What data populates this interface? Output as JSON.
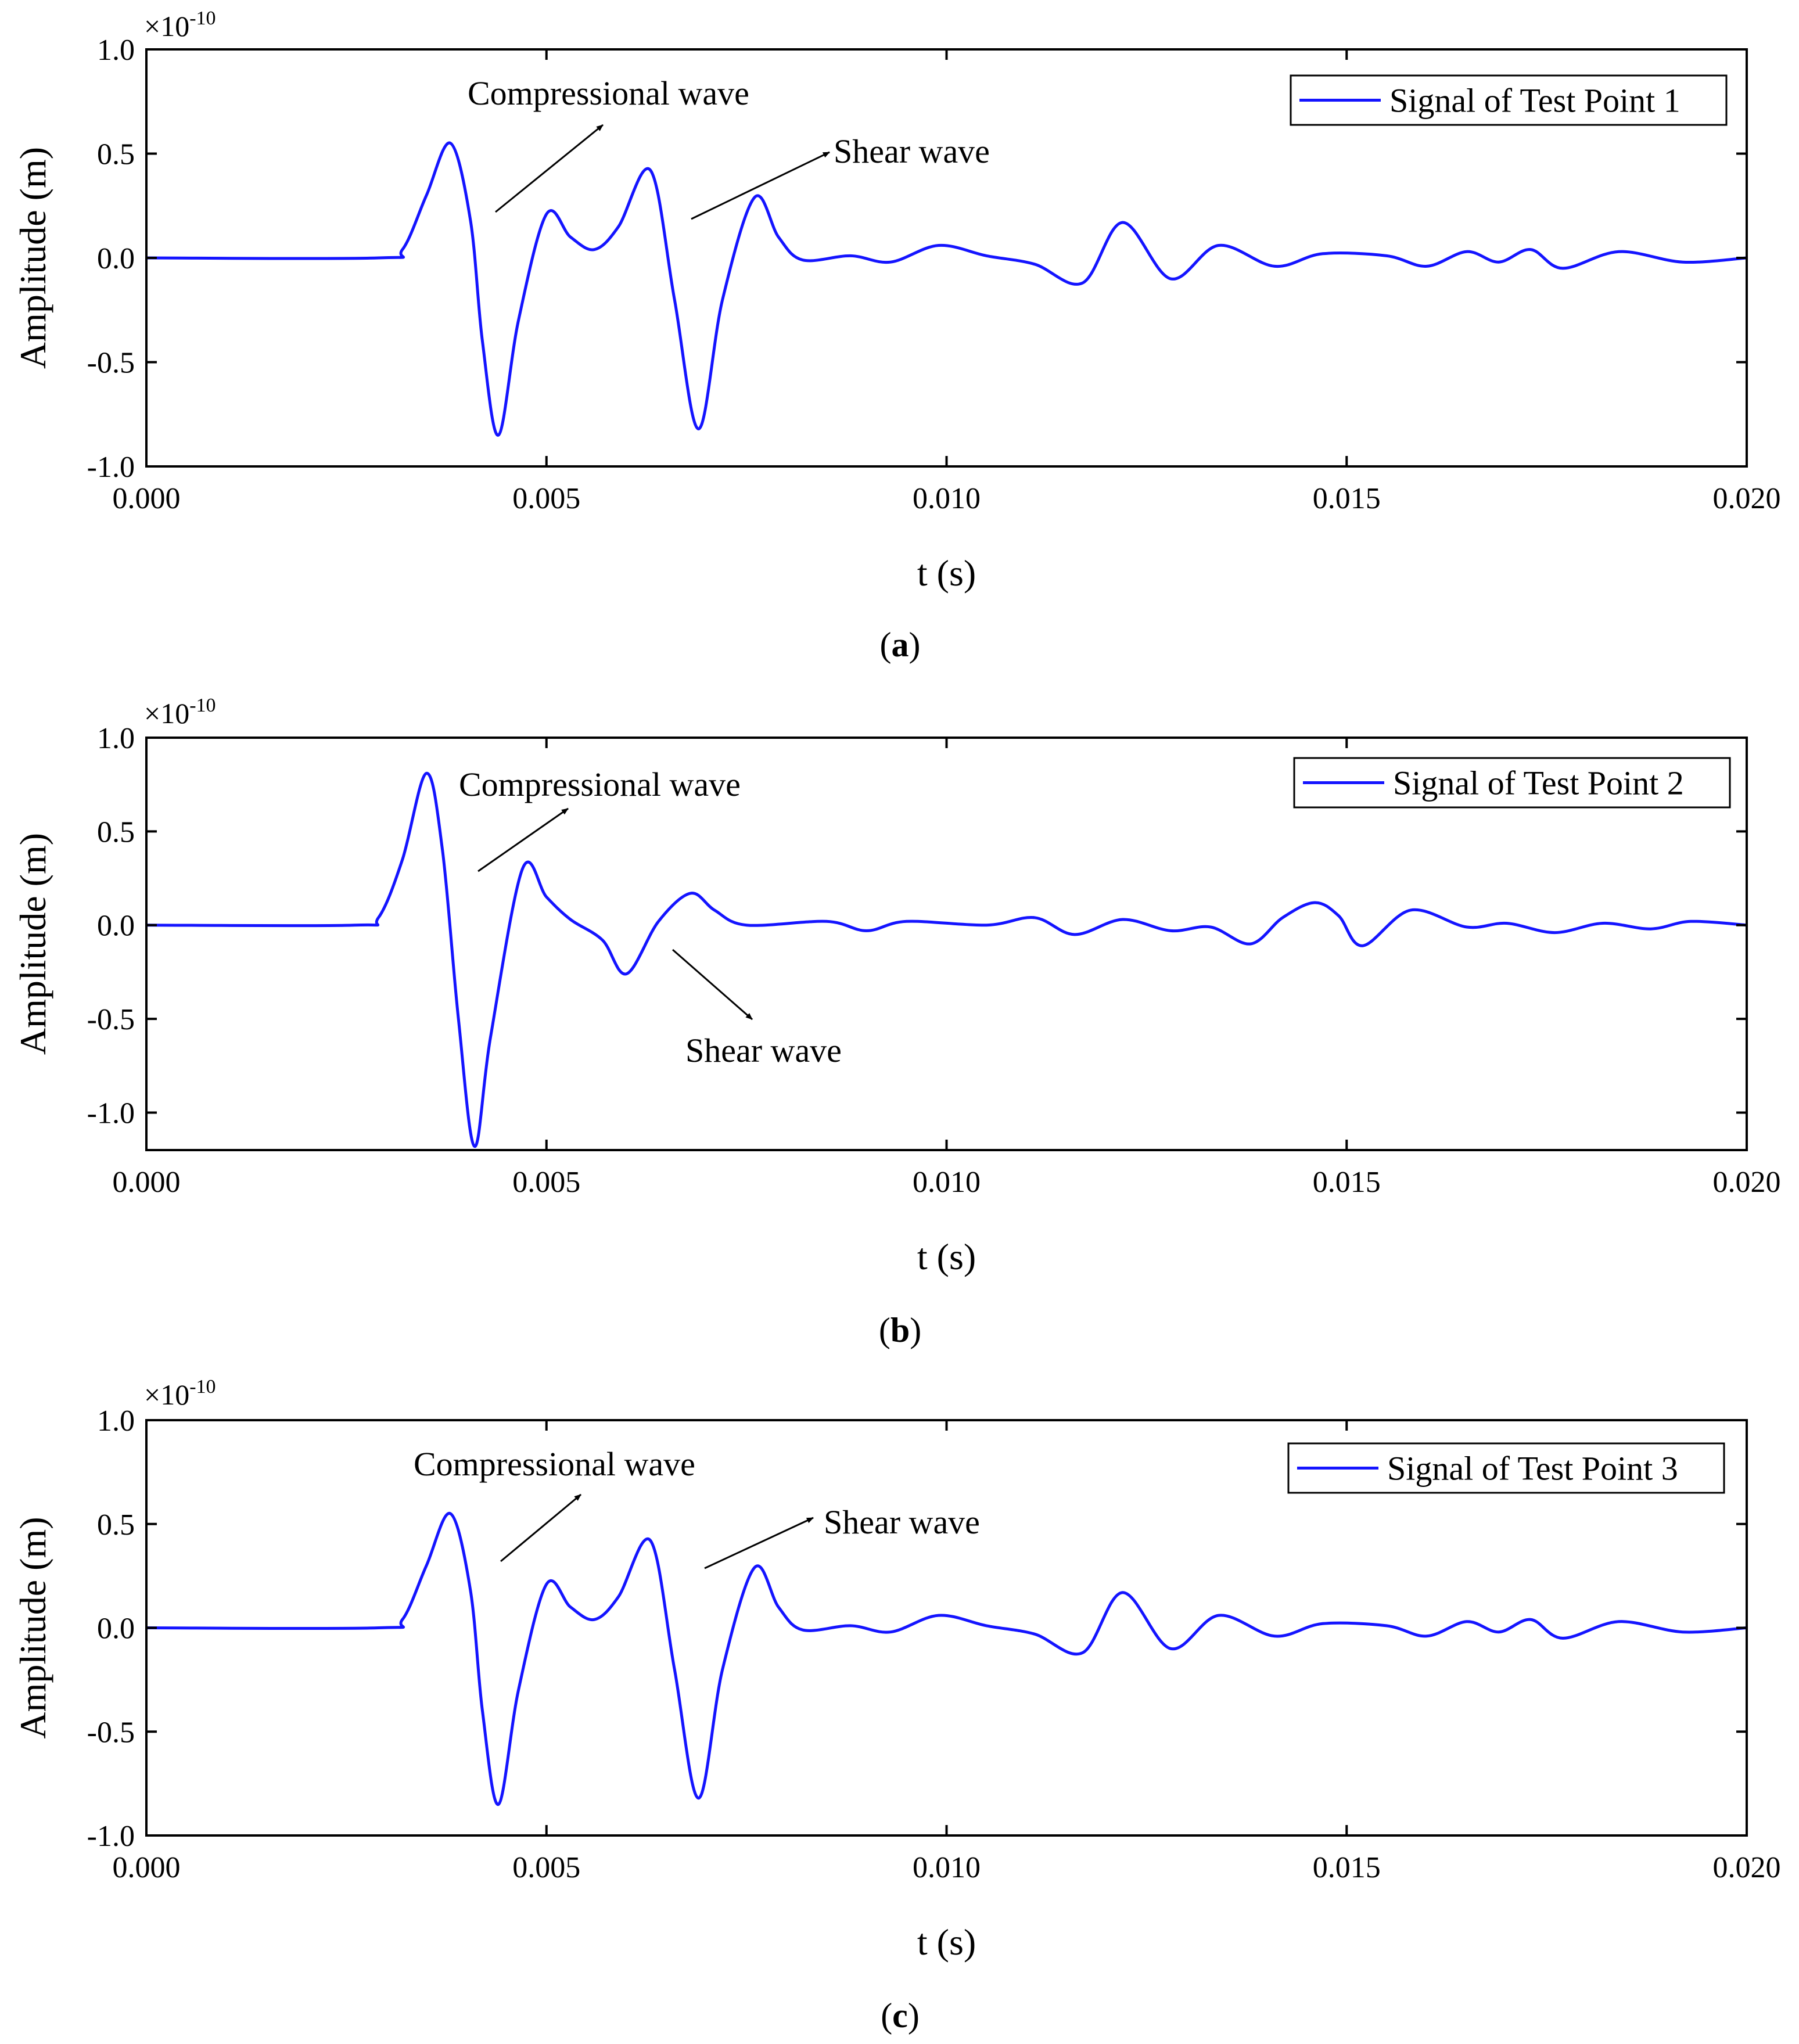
{
  "colors": {
    "series": "#1414ff",
    "axis": "#000000",
    "background": "#ffffff"
  },
  "chart_data": [
    {
      "type": "line",
      "caption_letter": "a",
      "xlabel": "t (s)",
      "ylabel": "Amplitude (m)",
      "multiplier": {
        "base": "×10",
        "exponent": "-10"
      },
      "xlim": [
        0,
        0.02
      ],
      "ylim": [
        -1.0,
        1.0
      ],
      "xticks": [
        "0.000",
        "0.005",
        "0.010",
        "0.015",
        "0.020"
      ],
      "yticks": [
        "1.0",
        "0.5",
        "0.0",
        "-0.5",
        "-1.0"
      ],
      "legend": {
        "position": "top-right",
        "entries": [
          "Signal of Test Point 1"
        ]
      },
      "annotations": [
        {
          "text": "Compressional wave",
          "direction": "up"
        },
        {
          "text": "Shear wave",
          "direction": "up"
        }
      ],
      "series": [
        {
          "name": "Signal of Test Point 1",
          "points": [
            [
              0,
              0
            ],
            [
              0.0029,
              0
            ],
            [
              0.0032,
              0.04
            ],
            [
              0.0035,
              0.3
            ],
            [
              0.0038,
              0.55
            ],
            [
              0.00405,
              0.18
            ],
            [
              0.0042,
              -0.4
            ],
            [
              0.0044,
              -0.85
            ],
            [
              0.00465,
              -0.3
            ],
            [
              0.005,
              0.21
            ],
            [
              0.0053,
              0.1
            ],
            [
              0.0056,
              0.04
            ],
            [
              0.0059,
              0.15
            ],
            [
              0.0063,
              0.42
            ],
            [
              0.0066,
              -0.2
            ],
            [
              0.0069,
              -0.82
            ],
            [
              0.0072,
              -0.2
            ],
            [
              0.0076,
              0.29
            ],
            [
              0.0079,
              0.1
            ],
            [
              0.0082,
              -0.01
            ],
            [
              0.0088,
              0.01
            ],
            [
              0.0093,
              -0.02
            ],
            [
              0.0099,
              0.06
            ],
            [
              0.0105,
              0.01
            ],
            [
              0.0111,
              -0.03
            ],
            [
              0.0117,
              -0.12
            ],
            [
              0.0122,
              0.17
            ],
            [
              0.0128,
              -0.1
            ],
            [
              0.0134,
              0.06
            ],
            [
              0.0141,
              -0.04
            ],
            [
              0.0147,
              0.02
            ],
            [
              0.0155,
              0.01
            ],
            [
              0.016,
              -0.04
            ],
            [
              0.0165,
              0.03
            ],
            [
              0.0169,
              -0.02
            ],
            [
              0.0173,
              0.04
            ],
            [
              0.0177,
              -0.05
            ],
            [
              0.0184,
              0.03
            ],
            [
              0.0192,
              -0.02
            ],
            [
              0.02,
              0
            ]
          ]
        }
      ]
    },
    {
      "type": "line",
      "caption_letter": "b",
      "xlabel": "t (s)",
      "ylabel": "Amplitude (m)",
      "multiplier": {
        "base": "×10",
        "exponent": "-10"
      },
      "xlim": [
        0,
        0.02
      ],
      "ylim": [
        -1.2,
        1.0
      ],
      "xticks": [
        "0.000",
        "0.005",
        "0.010",
        "0.015",
        "0.020"
      ],
      "yticks": [
        "1.0",
        "0.5",
        "0.0",
        "-0.5",
        "-1.0"
      ],
      "legend": {
        "position": "top-right",
        "entries": [
          "Signal of Test Point 2"
        ]
      },
      "annotations": [
        {
          "text": "Compressional wave",
          "direction": "up"
        },
        {
          "text": "Shear wave",
          "direction": "down"
        }
      ],
      "series": [
        {
          "name": "Signal of Test Point 2",
          "points": [
            [
              0,
              0
            ],
            [
              0.0026,
              0
            ],
            [
              0.0029,
              0.04
            ],
            [
              0.0032,
              0.35
            ],
            [
              0.0035,
              0.81
            ],
            [
              0.0037,
              0.4
            ],
            [
              0.0039,
              -0.5
            ],
            [
              0.0041,
              -1.18
            ],
            [
              0.0043,
              -0.6
            ],
            [
              0.0047,
              0.3
            ],
            [
              0.005,
              0.15
            ],
            [
              0.0053,
              0.03
            ],
            [
              0.0057,
              -0.08
            ],
            [
              0.006,
              -0.26
            ],
            [
              0.0064,
              0.02
            ],
            [
              0.0068,
              0.17
            ],
            [
              0.0071,
              0.08
            ],
            [
              0.0075,
              0
            ],
            [
              0.0085,
              0.02
            ],
            [
              0.009,
              -0.03
            ],
            [
              0.0095,
              0.02
            ],
            [
              0.0105,
              0
            ],
            [
              0.0111,
              0.04
            ],
            [
              0.0116,
              -0.05
            ],
            [
              0.0122,
              0.03
            ],
            [
              0.0128,
              -0.03
            ],
            [
              0.0133,
              -0.01
            ],
            [
              0.0138,
              -0.1
            ],
            [
              0.0142,
              0.04
            ],
            [
              0.0146,
              0.12
            ],
            [
              0.0149,
              0.05
            ],
            [
              0.0152,
              -0.11
            ],
            [
              0.0158,
              0.08
            ],
            [
              0.0165,
              -0.01
            ],
            [
              0.017,
              0.01
            ],
            [
              0.0176,
              -0.04
            ],
            [
              0.0182,
              0.01
            ],
            [
              0.0188,
              -0.02
            ],
            [
              0.0193,
              0.02
            ],
            [
              0.02,
              0
            ]
          ]
        }
      ]
    },
    {
      "type": "line",
      "caption_letter": "c",
      "xlabel": "t (s)",
      "ylabel": "Amplitude (m)",
      "multiplier": {
        "base": "×10",
        "exponent": "-10"
      },
      "xlim": [
        0,
        0.02
      ],
      "ylim": [
        -1.0,
        1.0
      ],
      "xticks": [
        "0.000",
        "0.005",
        "0.010",
        "0.015",
        "0.020"
      ],
      "yticks": [
        "1.0",
        "0.5",
        "0.0",
        "-0.5",
        "-1.0"
      ],
      "legend": {
        "position": "top-right",
        "entries": [
          "Signal of Test Point 3"
        ]
      },
      "annotations": [
        {
          "text": "Compressional wave",
          "direction": "up"
        },
        {
          "text": "Shear wave",
          "direction": "up"
        }
      ],
      "series": [
        {
          "name": "Signal of Test Point 3",
          "points": [
            [
              0,
              0
            ],
            [
              0.0029,
              0
            ],
            [
              0.0032,
              0.04
            ],
            [
              0.0035,
              0.3
            ],
            [
              0.0038,
              0.55
            ],
            [
              0.00405,
              0.18
            ],
            [
              0.0042,
              -0.4
            ],
            [
              0.0044,
              -0.85
            ],
            [
              0.00465,
              -0.3
            ],
            [
              0.005,
              0.21
            ],
            [
              0.0053,
              0.1
            ],
            [
              0.0056,
              0.04
            ],
            [
              0.0059,
              0.15
            ],
            [
              0.0063,
              0.42
            ],
            [
              0.0066,
              -0.2
            ],
            [
              0.0069,
              -0.82
            ],
            [
              0.0072,
              -0.2
            ],
            [
              0.0076,
              0.29
            ],
            [
              0.0079,
              0.1
            ],
            [
              0.0082,
              -0.01
            ],
            [
              0.0088,
              0.01
            ],
            [
              0.0093,
              -0.02
            ],
            [
              0.0099,
              0.06
            ],
            [
              0.0105,
              0.01
            ],
            [
              0.0111,
              -0.03
            ],
            [
              0.0117,
              -0.12
            ],
            [
              0.0122,
              0.17
            ],
            [
              0.0128,
              -0.1
            ],
            [
              0.0134,
              0.06
            ],
            [
              0.0141,
              -0.04
            ],
            [
              0.0147,
              0.02
            ],
            [
              0.0155,
              0.01
            ],
            [
              0.016,
              -0.04
            ],
            [
              0.0165,
              0.03
            ],
            [
              0.0169,
              -0.02
            ],
            [
              0.0173,
              0.04
            ],
            [
              0.0177,
              -0.05
            ],
            [
              0.0184,
              0.03
            ],
            [
              0.0192,
              -0.02
            ],
            [
              0.02,
              0
            ]
          ]
        }
      ]
    }
  ]
}
